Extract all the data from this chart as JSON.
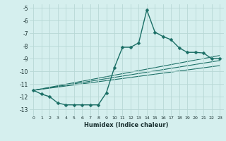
{
  "xlabel": "Humidex (Indice chaleur)",
  "ylabel": "",
  "bg_color": "#d5efee",
  "line_color": "#1a6e65",
  "grid_color": "#b8d8d5",
  "xlim": [
    -0.5,
    23.5
  ],
  "ylim": [
    -13.5,
    -4.7
  ],
  "xticks": [
    0,
    1,
    2,
    3,
    4,
    5,
    6,
    7,
    8,
    9,
    10,
    11,
    12,
    13,
    14,
    15,
    16,
    17,
    18,
    19,
    20,
    21,
    22,
    23
  ],
  "yticks": [
    -5,
    -6,
    -7,
    -8,
    -9,
    -10,
    -11,
    -12,
    -13
  ],
  "main_series": {
    "x": [
      0,
      1,
      2,
      3,
      4,
      5,
      6,
      7,
      8,
      9,
      10,
      11,
      12,
      13,
      14,
      15,
      16,
      17,
      18,
      19,
      20,
      21,
      22,
      23
    ],
    "y": [
      -11.5,
      -11.8,
      -12.0,
      -12.5,
      -12.65,
      -12.65,
      -12.65,
      -12.65,
      -12.65,
      -11.7,
      -9.7,
      -8.1,
      -8.1,
      -7.75,
      -5.15,
      -6.9,
      -7.25,
      -7.5,
      -8.15,
      -8.5,
      -8.5,
      -8.55,
      -9.0,
      -9.0
    ],
    "markersize": 2.5,
    "linewidth": 1.0
  },
  "regression_lines": [
    {
      "x0": 0,
      "y0": -11.5,
      "x1": 23,
      "y1": -8.75,
      "linewidth": 0.8
    },
    {
      "x0": 0,
      "y0": -11.5,
      "x1": 23,
      "y1": -9.15,
      "linewidth": 0.8
    },
    {
      "x0": 0,
      "y0": -11.5,
      "x1": 23,
      "y1": -9.55,
      "linewidth": 0.8
    }
  ]
}
